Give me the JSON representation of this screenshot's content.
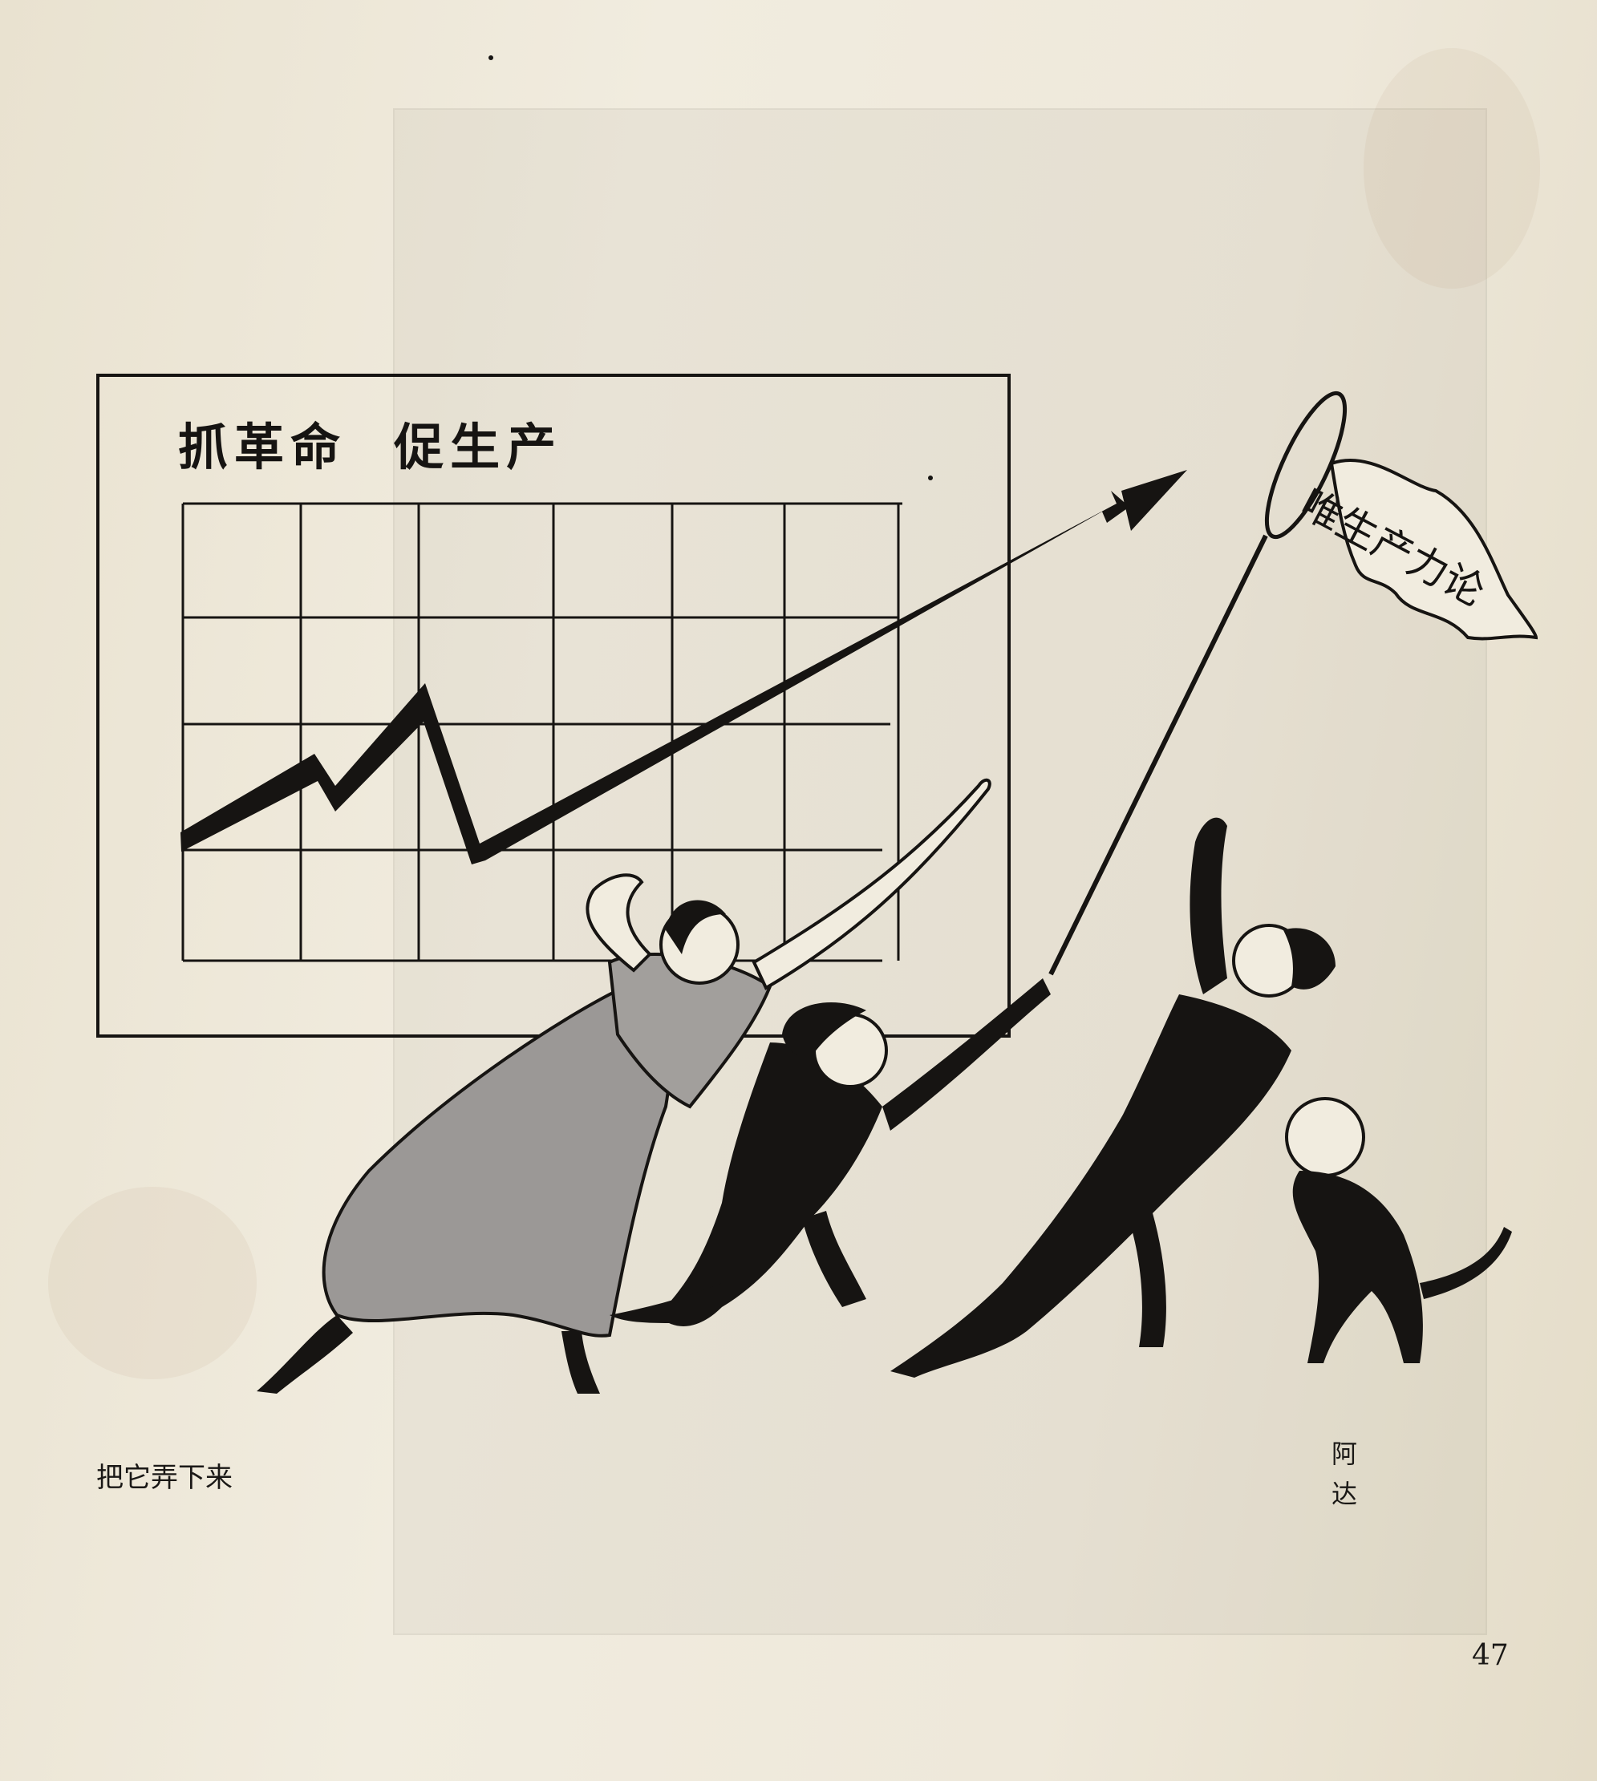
{
  "cartoon": {
    "board_title": "抓革命  促生产",
    "flag_text": "唯生产力论",
    "caption": "把它弄下来",
    "artist": "阿 达"
  },
  "page_number": "47",
  "colors": {
    "paper": "#ece6d6",
    "ink": "#161412",
    "grey_dress": "#9b9896"
  }
}
